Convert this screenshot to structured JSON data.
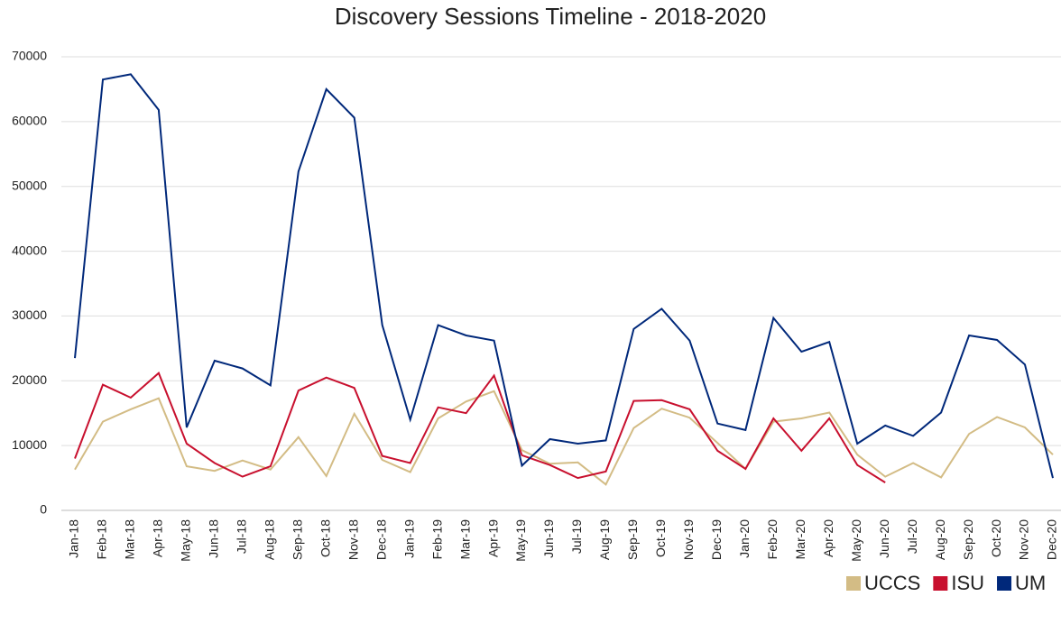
{
  "chart_data": {
    "type": "line",
    "title": "Discovery Sessions Timeline - 2018-2020",
    "categories": [
      "Jan-18",
      "Feb-18",
      "Mar-18",
      "Apr-18",
      "May-18",
      "Jun-18",
      "Jul-18",
      "Aug-18",
      "Sep-18",
      "Oct-18",
      "Nov-18",
      "Dec-18",
      "Jan-19",
      "Feb-19",
      "Mar-19",
      "Apr-19",
      "May-19",
      "Jun-19",
      "Jul-19",
      "Aug-19",
      "Sep-19",
      "Oct-19",
      "Nov-19",
      "Dec-19",
      "Jan-20",
      "Feb-20",
      "Mar-20",
      "Apr-20",
      "May-20",
      "Jun-20",
      "Jul-20",
      "Aug-20",
      "Sep-20",
      "Oct-20",
      "Nov-20",
      "Dec-20"
    ],
    "series": [
      {
        "name": "UCCS",
        "color": "#d3bc85",
        "values": [
          6300,
          13700,
          15600,
          17300,
          6800,
          6100,
          7700,
          6300,
          11300,
          5300,
          14900,
          7800,
          5900,
          14200,
          16800,
          18400,
          9300,
          7200,
          7400,
          4000,
          12700,
          15700,
          14300,
          10400,
          6400,
          13700,
          14200,
          15100,
          8600,
          5200,
          7300,
          5100,
          11800,
          14400,
          12800,
          8600
        ]
      },
      {
        "name": "ISU",
        "color": "#c8102e",
        "values": [
          8000,
          19400,
          17400,
          21200,
          10300,
          7300,
          5200,
          6800,
          18500,
          20500,
          18900,
          8400,
          7300,
          15900,
          15000,
          20800,
          8500,
          7000,
          5000,
          6000,
          16900,
          17000,
          15600,
          9200,
          6400,
          14200,
          9200,
          14200,
          7000,
          4300,
          null,
          null,
          null,
          null,
          null,
          null
        ]
      },
      {
        "name": "UM",
        "color": "#00287a",
        "values": [
          23500,
          66500,
          67300,
          61800,
          12800,
          23100,
          21900,
          19300,
          52300,
          65000,
          60600,
          28600,
          14000,
          28600,
          27000,
          26200,
          6900,
          11000,
          10300,
          10800,
          28000,
          31100,
          26200,
          13400,
          12400,
          29700,
          24500,
          26000,
          10300,
          13100,
          11500,
          15100,
          27000,
          26300,
          22500,
          5000
        ]
      }
    ],
    "ylim": [
      0,
      70000
    ],
    "yticks": [
      0,
      10000,
      20000,
      30000,
      40000,
      50000,
      60000,
      70000
    ],
    "grid": true,
    "legend": "bottom-right"
  }
}
